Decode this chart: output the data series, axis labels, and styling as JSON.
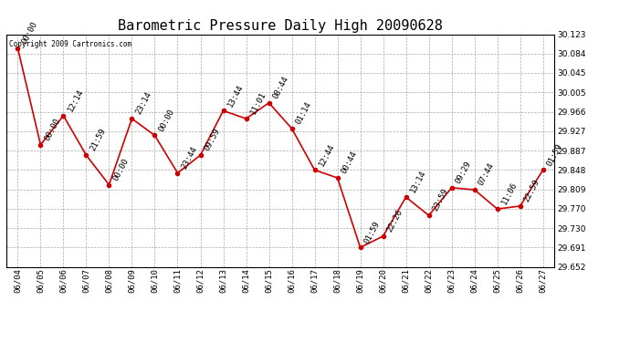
{
  "title": "Barometric Pressure Daily High 20090628",
  "copyright": "Copyright 2009 Cartronics.com",
  "x_labels": [
    "06/04",
    "06/05",
    "06/06",
    "06/07",
    "06/08",
    "06/09",
    "06/10",
    "06/11",
    "06/12",
    "06/13",
    "06/14",
    "06/15",
    "06/16",
    "06/17",
    "06/18",
    "06/19",
    "06/20",
    "06/21",
    "06/22",
    "06/23",
    "06/24",
    "06/25",
    "06/26",
    "06/27"
  ],
  "point_labels": [
    "00:00",
    "00:00",
    "12:14",
    "21:59",
    "00:00",
    "23:14",
    "00:00",
    "23:44",
    "09:59",
    "13:44",
    "11:01",
    "08:44",
    "01:14",
    "12:44",
    "00:44",
    "01:59",
    "22:26",
    "13:14",
    "23:59",
    "09:29",
    "07:44",
    "11:06",
    "22:59",
    "01:59"
  ],
  "y_values": [
    30.095,
    29.899,
    29.958,
    29.878,
    29.818,
    29.952,
    29.918,
    29.842,
    29.878,
    29.968,
    29.952,
    29.984,
    29.932,
    29.848,
    29.832,
    29.691,
    29.714,
    29.793,
    29.756,
    29.812,
    29.808,
    29.769,
    29.775,
    29.848
  ],
  "ylim_min": 29.652,
  "ylim_max": 30.123,
  "yticks": [
    29.652,
    29.691,
    29.73,
    29.77,
    29.809,
    29.848,
    29.887,
    29.927,
    29.966,
    30.005,
    30.045,
    30.084,
    30.123
  ],
  "line_color": "#cc0000",
  "marker_color": "#cc0000",
  "bg_color": "#ffffff",
  "grid_color": "#aaaaaa",
  "title_fontsize": 11,
  "label_fontsize": 6.5,
  "point_label_fontsize": 6.5,
  "figwidth": 6.9,
  "figheight": 3.75,
  "dpi": 100
}
